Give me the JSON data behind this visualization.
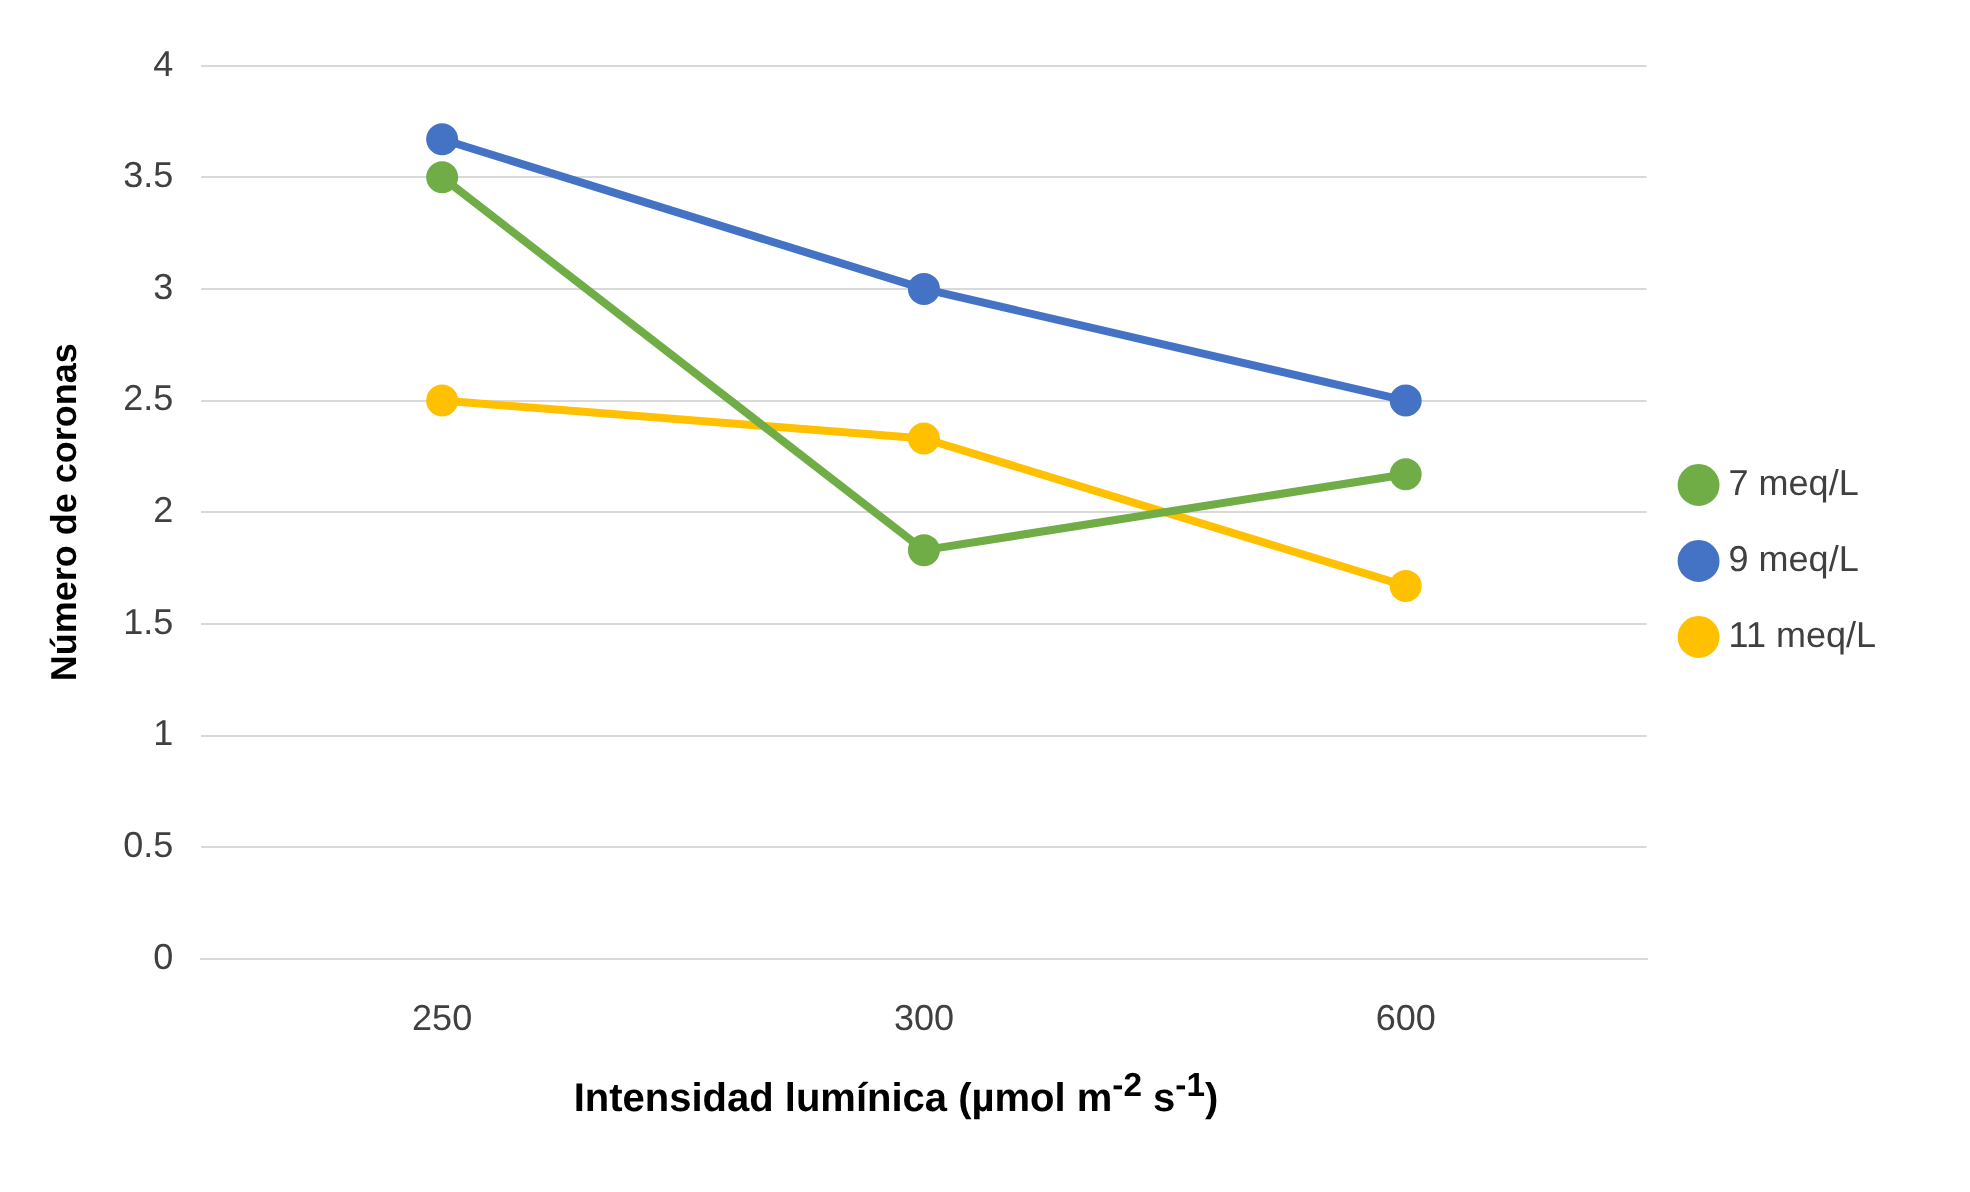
{
  "chart_data": {
    "type": "line",
    "xlabel": "Intensidad lumínica (µmol m$^{-2}$ s$^{-1}$)",
    "ylabel": "Número de coronas",
    "categories": [
      "250",
      "300",
      "600"
    ],
    "series": [
      {
        "name": "7 meq/L",
        "color": "#70ad47",
        "values": [
          3.5,
          1.83,
          2.17
        ]
      },
      {
        "name": "9 meq/L",
        "color": "#4472c4",
        "values": [
          3.67,
          3.0,
          2.5
        ]
      },
      {
        "name": "11 meq/L",
        "color": "#ffc000",
        "values": [
          2.5,
          2.33,
          1.67
        ]
      }
    ],
    "ylim": [
      0,
      4
    ],
    "yticks": [
      0,
      0.5,
      1,
      1.5,
      2,
      2.5,
      3,
      3.5,
      4
    ],
    "grid": "y",
    "legend": "right",
    "marker": "circle",
    "line_style": "solid"
  }
}
